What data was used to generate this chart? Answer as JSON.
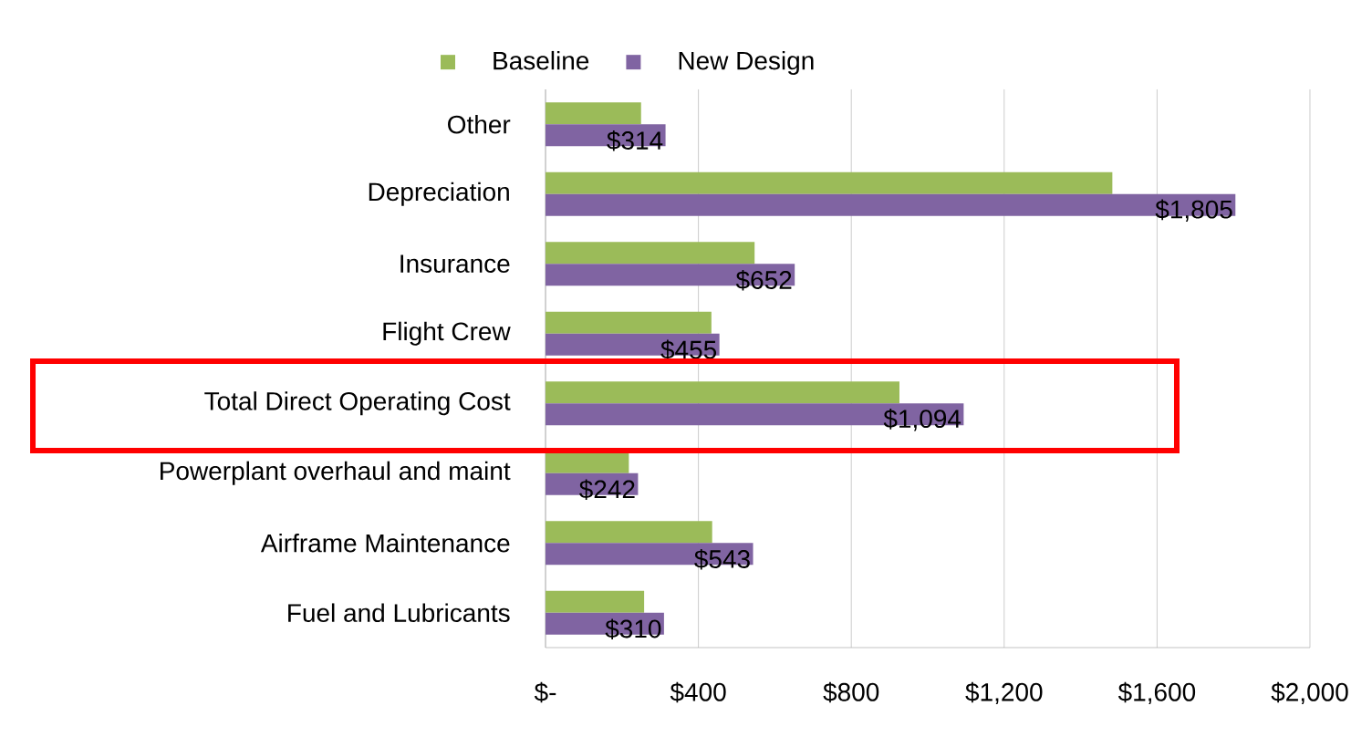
{
  "chart_data": {
    "type": "bar",
    "orientation": "horizontal",
    "categories": [
      "Other",
      "Depreciation",
      "Insurance",
      "Flight Crew",
      "Total Direct Operating Cost",
      "Powerplant overhaul and maint",
      "Airframe Maintenance",
      "Fuel and Lubricants"
    ],
    "series": [
      {
        "name": "Baseline",
        "color": "#9bbb59",
        "values": [
          250,
          1483,
          547,
          434,
          926,
          218,
          436,
          258
        ]
      },
      {
        "name": "New Design",
        "color": "#8064a2",
        "values": [
          314,
          1805,
          652,
          455,
          1094,
          242,
          543,
          310
        ],
        "value_labels": [
          "$314",
          "$1,805",
          "$652",
          "$455",
          "$1,094",
          "$242",
          "$543",
          "$310"
        ]
      }
    ],
    "xlim": [
      0,
      2000
    ],
    "xticks": [
      {
        "value": 0,
        "label": "$-"
      },
      {
        "value": 400,
        "label": "$400"
      },
      {
        "value": 800,
        "label": "$800"
      },
      {
        "value": 1200,
        "label": "$1,200"
      },
      {
        "value": 1600,
        "label": "$1,600"
      },
      {
        "value": 2000,
        "label": "$2,000"
      }
    ],
    "grid": "x",
    "legend": "top"
  }
}
